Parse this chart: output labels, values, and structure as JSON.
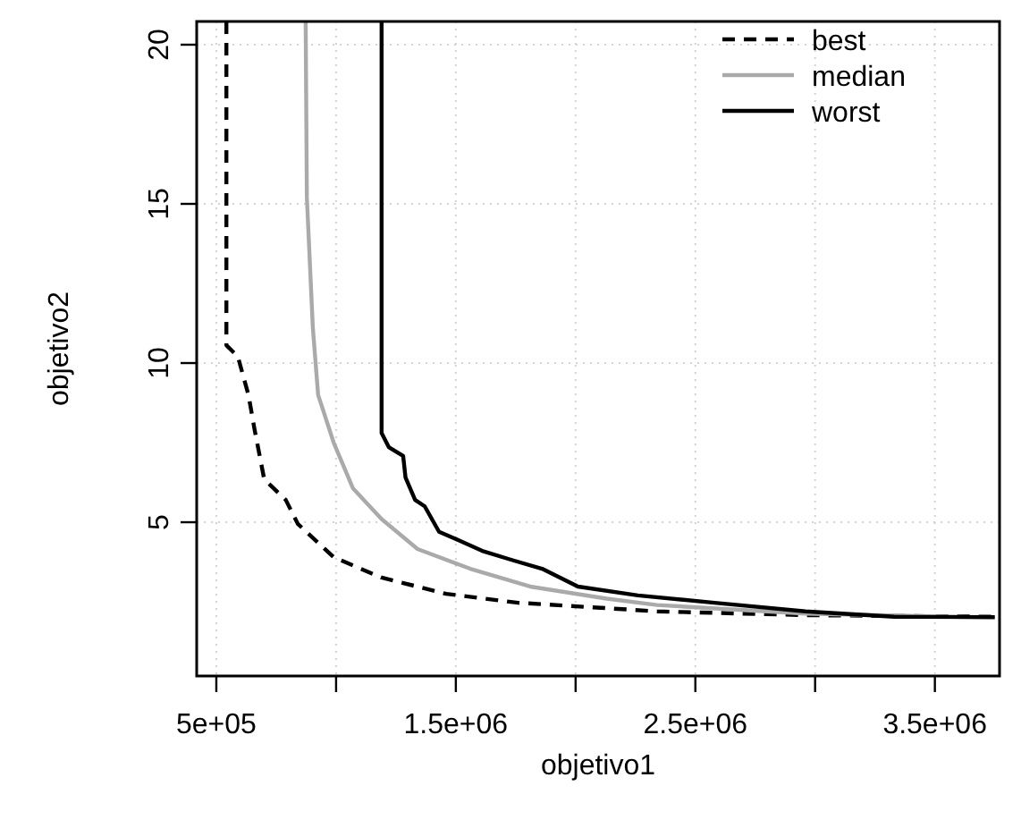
{
  "chart_data": {
    "type": "line",
    "xlabel": "objetivo1",
    "ylabel": "objetivo2",
    "xlim": [
      418000,
      3770000
    ],
    "ylim": [
      0.17,
      20.73
    ],
    "xticks": [
      {
        "value": 500000,
        "label": "5e+05"
      },
      {
        "value": 1000000,
        "label": null
      },
      {
        "value": 1500000,
        "label": "1.5e+06"
      },
      {
        "value": 2000000,
        "label": null
      },
      {
        "value": 2500000,
        "label": "2.5e+06"
      },
      {
        "value": 3000000,
        "label": null
      },
      {
        "value": 3500000,
        "label": "3.5e+06"
      }
    ],
    "yticks": [
      5,
      10,
      15,
      20
    ],
    "grid": true,
    "legend": "top right",
    "marker": "none",
    "series": [
      {
        "name": "best",
        "color": "#000000",
        "line_style": "dashed",
        "x": [
          542000,
          542000,
          590000,
          634000,
          660000,
          700000,
          790000,
          840000,
          990000,
          1190000,
          1460000,
          1760000,
          2130000,
          2340000,
          2960000,
          3750000
        ],
        "values": [
          20.73,
          10.56,
          10.2,
          9.0,
          7.9,
          6.35,
          5.7,
          4.95,
          3.9,
          3.26,
          2.75,
          2.47,
          2.3,
          2.2,
          2.08,
          2.03
        ]
      },
      {
        "name": "median",
        "color": "#aaaaaa",
        "line_style": "solid",
        "x": [
          873000,
          878000,
          903000,
          925000,
          990000,
          1070000,
          1190000,
          1340000,
          1560000,
          1810000,
          2130000,
          2340000,
          2960000,
          3750000
        ],
        "values": [
          20.73,
          15.2,
          11.1,
          9.0,
          7.5,
          6.07,
          5.1,
          4.16,
          3.54,
          2.98,
          2.6,
          2.4,
          2.13,
          2.0
        ]
      },
      {
        "name": "worst",
        "color": "#000000",
        "line_style": "solid",
        "x": [
          1190000,
          1190000,
          1220000,
          1280000,
          1290000,
          1330000,
          1370000,
          1430000,
          1510000,
          1610000,
          1740000,
          1860000,
          2010000,
          2260000,
          2580000,
          2960000,
          3330000,
          3750000
        ],
        "values": [
          20.73,
          7.8,
          7.36,
          7.08,
          6.4,
          5.7,
          5.5,
          4.7,
          4.44,
          4.1,
          3.8,
          3.54,
          2.98,
          2.7,
          2.47,
          2.2,
          2.03,
          2.02
        ]
      }
    ]
  }
}
